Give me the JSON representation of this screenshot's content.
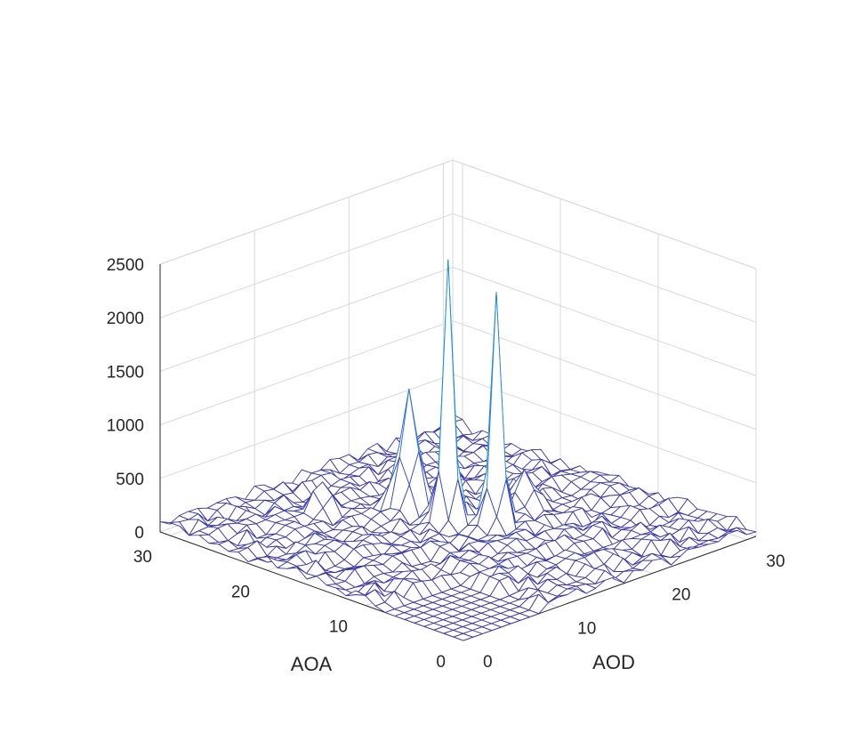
{
  "chart_data": {
    "type": "surface",
    "style": "wireframe mesh",
    "xlabel": "AOD",
    "ylabel": "AOA",
    "zlabel": "",
    "x_range": [
      0,
      31
    ],
    "y_range": [
      0,
      31
    ],
    "z_range": [
      0,
      2500
    ],
    "x_ticks": [
      "0",
      "10",
      "20",
      "30"
    ],
    "y_ticks": [
      "0",
      "10",
      "20",
      "30"
    ],
    "z_ticks": [
      "0",
      "500",
      "1000",
      "1500",
      "2000",
      "2500"
    ],
    "grid": true,
    "colormap": [
      "#3c2fa8",
      "#2f6fe0",
      "#17b7c8",
      "#7ac959",
      "#f2e02a"
    ],
    "box_color": "#d9d9d9",
    "peaks": [
      {
        "aod": 16,
        "aoa": 17,
        "value": 2420
      },
      {
        "aod": 18,
        "aoa": 14,
        "value": 2120
      },
      {
        "aod": 16,
        "aoa": 21,
        "value": 1150
      },
      {
        "aod": 22,
        "aoa": 15,
        "value": 340
      },
      {
        "aod": 11,
        "aoa": 25,
        "value": 310
      }
    ],
    "background_level": [
      0,
      130
    ]
  }
}
